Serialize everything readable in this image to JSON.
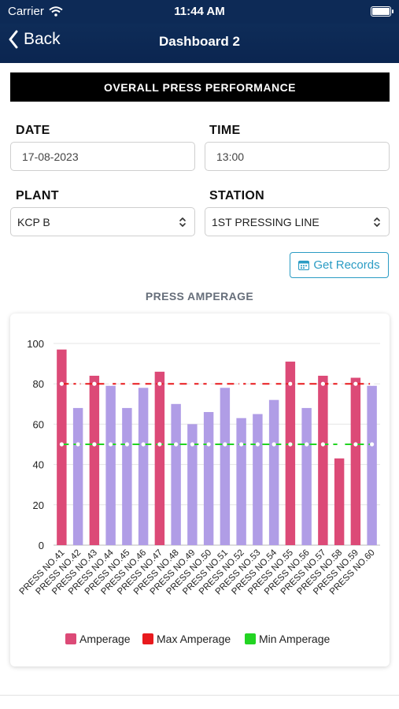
{
  "status_bar": {
    "carrier": "Carrier",
    "time": "11:44 AM"
  },
  "nav": {
    "back_label": "Back",
    "title": "Dashboard 2"
  },
  "banner": "OVERALL PRESS PERFORMANCE",
  "form": {
    "date_label": "DATE",
    "date_value": "17-08-2023",
    "time_label": "TIME",
    "time_value": "13:00",
    "plant_label": "PLANT",
    "plant_value": "KCP B",
    "station_label": "STATION",
    "station_value": "1ST PRESSING LINE"
  },
  "get_records_label": "Get Records",
  "chart_title": "PRESS AMPERAGE",
  "colors": {
    "navy": "#0d2a56",
    "high": "#dc4a77",
    "normal": "#b09de6",
    "max_line": "#e8191d",
    "min_line": "#22d422",
    "accent": "#2b9cc4"
  },
  "chart_data": {
    "type": "bar",
    "categories": [
      "PRESS NO.41",
      "PRESS NO.42",
      "PRESS NO.43",
      "PRESS NO.44",
      "PRESS NO.45",
      "PRESS NO.46",
      "PRESS NO.47",
      "PRESS NO.48",
      "PRESS NO.49",
      "PRESS NO.50",
      "PRESS NO.51",
      "PRESS NO.52",
      "PRESS NO.53",
      "PRESS NO.54",
      "PRESS NO.55",
      "PRESS NO.56",
      "PRESS NO.57",
      "PRESS NO.58",
      "PRESS NO.59",
      "PRESS NO.60"
    ],
    "series": [
      {
        "name": "Amperage",
        "values": [
          97,
          68,
          84,
          79,
          68,
          78,
          86,
          70,
          60,
          66,
          78,
          63,
          65,
          72,
          91,
          68,
          84,
          43,
          83,
          79
        ]
      },
      {
        "name": "Max Amperage",
        "type": "line",
        "values": [
          80,
          80,
          80,
          80,
          80,
          80,
          80,
          80,
          80,
          80,
          80,
          80,
          80,
          80,
          80,
          80,
          80,
          80,
          80,
          80
        ]
      },
      {
        "name": "Min Amperage",
        "type": "line",
        "values": [
          50,
          50,
          50,
          50,
          50,
          50,
          50,
          50,
          50,
          50,
          50,
          50,
          50,
          50,
          50,
          50,
          50,
          50,
          50,
          50
        ]
      }
    ],
    "y_ticks": [
      "0",
      "20",
      "40",
      "60",
      "80",
      "100"
    ],
    "ylim": [
      0,
      100
    ],
    "grid": true,
    "legend": "bottom"
  }
}
